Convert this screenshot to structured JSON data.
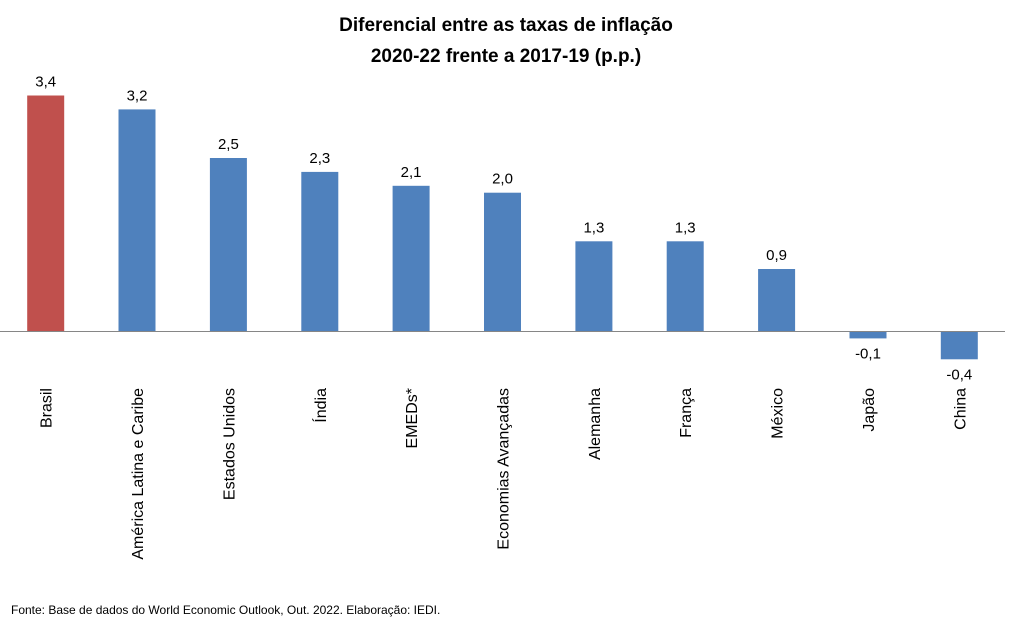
{
  "chart_data": {
    "type": "bar",
    "title": [
      "Diferencial entre as taxas de inflação",
      "2020-22 frente a 2017-19 (p.p.)"
    ],
    "categories": [
      "Brasil",
      "América Latina e Caribe",
      "Estados Unidos",
      "Índia",
      "EMEDs*",
      "Economias Avançadas",
      "Alemanha",
      "França",
      "México",
      "Japão",
      "China"
    ],
    "values": [
      3.4,
      3.2,
      2.5,
      2.3,
      2.1,
      2.0,
      1.3,
      1.3,
      0.9,
      -0.1,
      -0.4
    ],
    "value_labels": [
      "3,4",
      "3,2",
      "2,5",
      "2,3",
      "2,1",
      "2,0",
      "1,3",
      "1,3",
      "0,9",
      "-0,1",
      "-0,4"
    ],
    "highlight_index": 0,
    "colors": {
      "default": "#4f81bd",
      "highlight": "#c0504d",
      "axis": "#868686"
    },
    "ylim": [
      -0.4,
      3.4
    ],
    "grid": false,
    "legend": "none"
  },
  "source_note": "Fonte: Base de dados do World Economic Outlook, Out. 2022.  Elaboração: IEDI."
}
